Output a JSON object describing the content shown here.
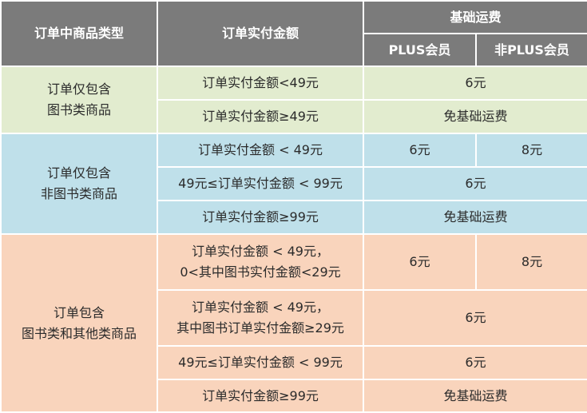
{
  "header": {
    "col_type": "订单中商品类型",
    "col_amount": "订单实付金额",
    "col_fee": "基础运费",
    "col_plus": "PLUS会员",
    "col_nonplus": "非PLUS会员"
  },
  "groups": [
    {
      "type_lines": [
        "订单仅包含",
        "图书类商品"
      ],
      "rows": [
        {
          "condition": [
            "订单实付金额<49元"
          ],
          "fee": "6元"
        },
        {
          "condition": [
            "订单实付金额≥49元"
          ],
          "fee": "免基础运费"
        }
      ]
    },
    {
      "type_lines": [
        "订单仅包含",
        "非图书类商品"
      ],
      "rows": [
        {
          "condition": [
            "订单实付金额 < 49元"
          ],
          "plus": "6元",
          "nonplus": "8元"
        },
        {
          "condition": [
            "49元≤订单实付金额 < 99元"
          ],
          "fee": "6元"
        },
        {
          "condition": [
            "订单实付金额≥99元"
          ],
          "fee": "免基础运费"
        }
      ]
    },
    {
      "type_lines": [
        "订单包含",
        "图书类和其他类商品"
      ],
      "rows": [
        {
          "condition": [
            "订单实付金额 < 49元，",
            "0<其中图书实付金额<29元"
          ],
          "plus": "6元",
          "nonplus": "8元"
        },
        {
          "condition": [
            "订单实付金额 < 49元，",
            "其中图书订单实付金额≥29元"
          ],
          "fee": "6元"
        },
        {
          "condition": [
            "49元≤订单实付金额 < 99元"
          ],
          "fee": "6元"
        },
        {
          "condition": [
            "订单实付金额≥99元"
          ],
          "fee": "免基础运费"
        }
      ]
    }
  ]
}
